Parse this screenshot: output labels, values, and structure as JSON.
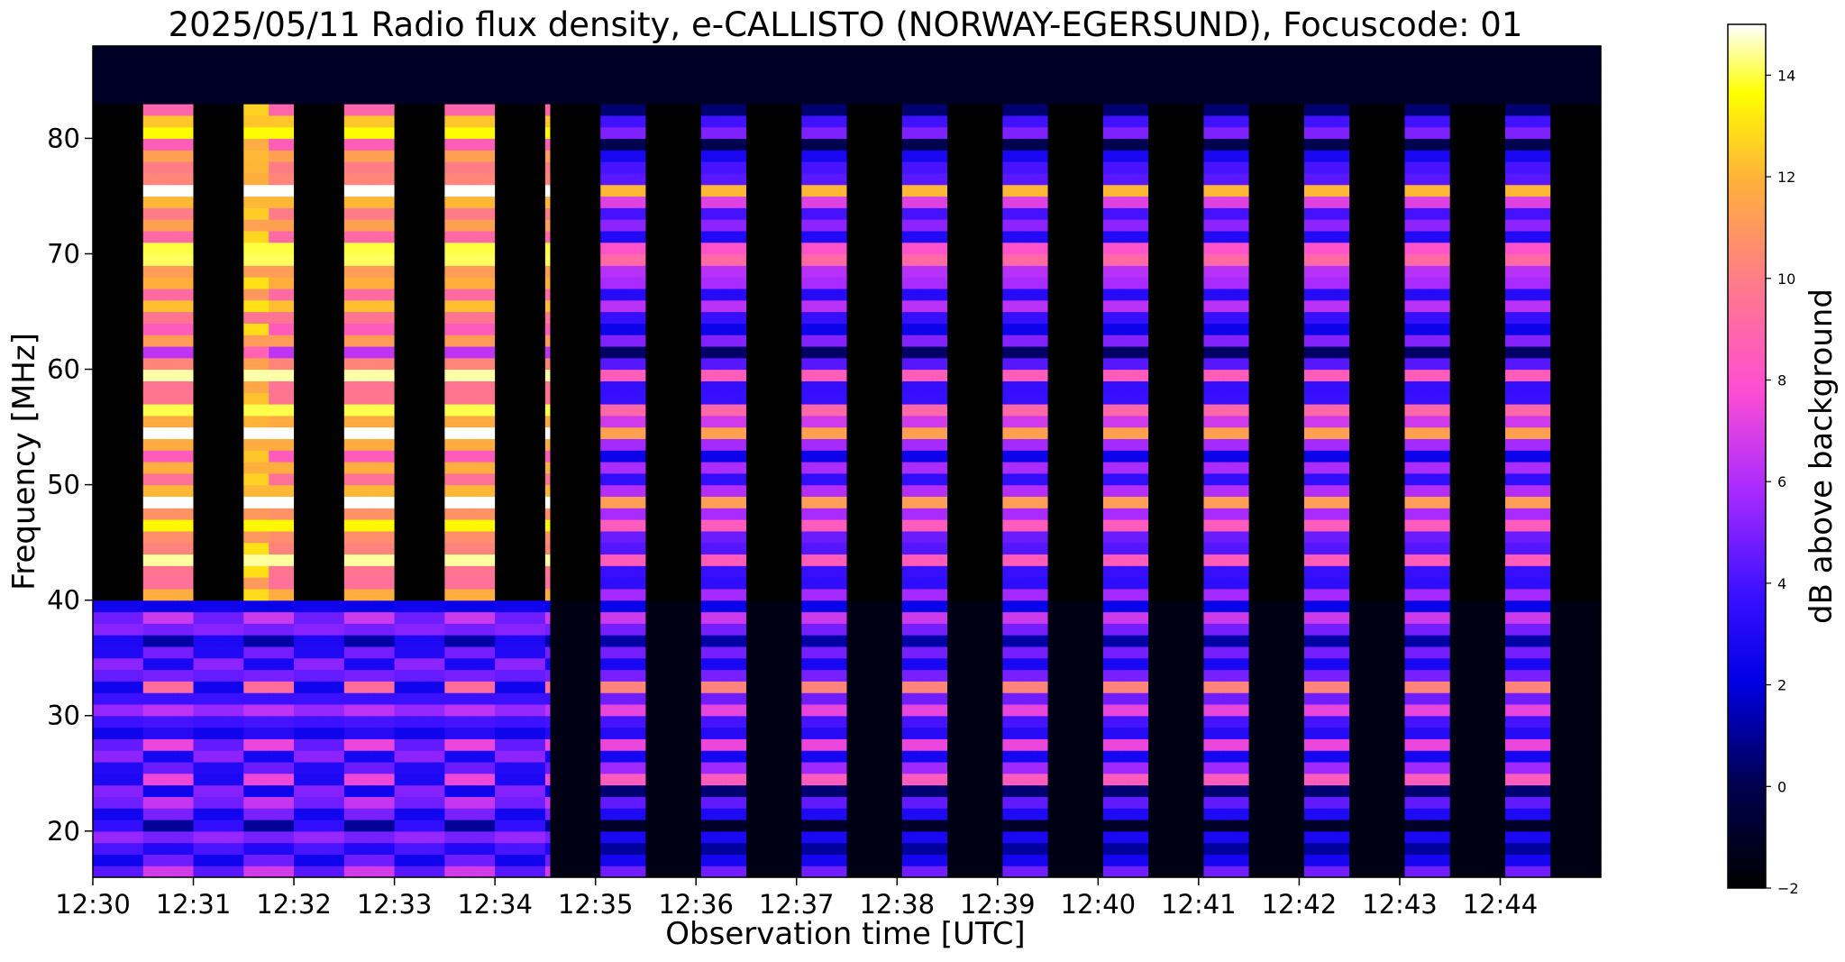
{
  "chart_data": {
    "type": "heatmap",
    "title": "2025/05/11  Radio flux density, e-CALLISTO (NORWAY-EGERSUND), Focuscode: 01",
    "xlabel": "Observation time [UTC]",
    "ylabel": "Frequency [MHz]",
    "colorbar_label": "dB above background",
    "colormap": "gnuplot2",
    "x_ticks": [
      "12:30",
      "12:31",
      "12:32",
      "12:33",
      "12:34",
      "12:35",
      "12:36",
      "12:37",
      "12:38",
      "12:39",
      "12:40",
      "12:41",
      "12:42",
      "12:43",
      "12:44"
    ],
    "y_ticks": [
      20,
      30,
      40,
      50,
      60,
      70,
      80
    ],
    "colorbar_ticks": [
      -2,
      0,
      2,
      4,
      6,
      8,
      10,
      12,
      14
    ],
    "xlim": [
      "12:30:00",
      "12:45:00"
    ],
    "ylim": [
      16,
      88
    ],
    "clim": [
      -2,
      15
    ],
    "grid": false,
    "regimes": [
      {
        "start": "12:30:00",
        "end": "12:34:32",
        "period_s": 60,
        "on_start_offset_s": 29,
        "on_duration_s": 30,
        "low_band_level_db": 4,
        "high_band_level_db": 11
      },
      {
        "start": "12:34:32",
        "end": "12:45:00",
        "period_s": 60,
        "on_start_offset_s": 3,
        "on_duration_s": 27,
        "low_band_level_db": 4,
        "high_band_level_db": 5
      }
    ],
    "band_split_mhz": 40,
    "strong_lines_mhz": [
      25,
      31.5,
      47.5,
      55.5,
      69,
      75
    ],
    "burst": {
      "start": "12:31:30",
      "end": "12:31:45",
      "level_db": 14
    }
  }
}
